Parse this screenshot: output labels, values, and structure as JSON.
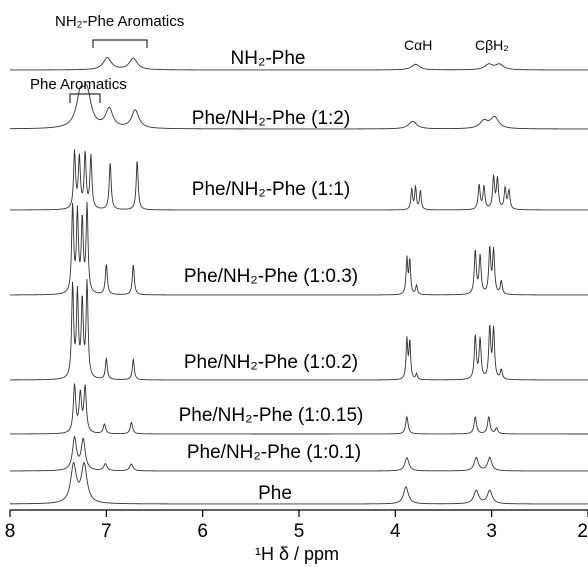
{
  "chart_data": {
    "type": "line",
    "xlabel": "¹H δ / ppm",
    "x_reversed": true,
    "xlim": [
      8,
      2
    ],
    "xticks": [
      "8",
      "7",
      "6",
      "5",
      "4",
      "3",
      "2"
    ],
    "grid": false,
    "peak_annotations": {
      "nh2_aromatics": "NH₂-Phe Aromatics",
      "phe_aromatics": "Phe Aromatics",
      "ca_h": "CαH",
      "cb_h2": "CβH₂"
    },
    "series": [
      {
        "name": "NH₂-Phe",
        "peaks": [
          {
            "ppm": 6.99,
            "height": 0.32,
            "width": 0.05
          },
          {
            "ppm": 6.72,
            "height": 0.3,
            "width": 0.05
          },
          {
            "ppm": 3.79,
            "height": 0.15,
            "width": 0.05
          },
          {
            "ppm": 3.03,
            "height": 0.14,
            "width": 0.05
          },
          {
            "ppm": 2.92,
            "height": 0.14,
            "width": 0.05
          }
        ]
      },
      {
        "name": "Phe/NH₂-Phe (1:2)",
        "peaks": [
          {
            "ppm": 7.27,
            "height": 0.8,
            "width": 0.05
          },
          {
            "ppm": 7.2,
            "height": 0.85,
            "width": 0.05
          },
          {
            "ppm": 6.97,
            "height": 0.5,
            "width": 0.045
          },
          {
            "ppm": 6.7,
            "height": 0.48,
            "width": 0.045
          },
          {
            "ppm": 3.82,
            "height": 0.2,
            "width": 0.05
          },
          {
            "ppm": 3.08,
            "height": 0.2,
            "width": 0.05
          },
          {
            "ppm": 2.97,
            "height": 0.3,
            "width": 0.05
          }
        ]
      },
      {
        "name": "Phe/NH₂-Phe (1:1)",
        "peaks": [
          {
            "ppm": 7.33,
            "height": 1.5,
            "width": 0.012
          },
          {
            "ppm": 7.28,
            "height": 1.35,
            "width": 0.012
          },
          {
            "ppm": 7.22,
            "height": 1.45,
            "width": 0.012
          },
          {
            "ppm": 7.16,
            "height": 1.4,
            "width": 0.012
          },
          {
            "ppm": 6.96,
            "height": 1.25,
            "width": 0.012
          },
          {
            "ppm": 6.68,
            "height": 1.3,
            "width": 0.012
          },
          {
            "ppm": 3.83,
            "height": 0.55,
            "width": 0.01
          },
          {
            "ppm": 3.79,
            "height": 0.6,
            "width": 0.01
          },
          {
            "ppm": 3.74,
            "height": 0.5,
            "width": 0.01
          },
          {
            "ppm": 3.13,
            "height": 0.65,
            "width": 0.012
          },
          {
            "ppm": 3.08,
            "height": 0.6,
            "width": 0.012
          },
          {
            "ppm": 2.98,
            "height": 0.85,
            "width": 0.012
          },
          {
            "ppm": 2.94,
            "height": 0.8,
            "width": 0.012
          },
          {
            "ppm": 2.86,
            "height": 0.55,
            "width": 0.012
          },
          {
            "ppm": 2.82,
            "height": 0.5,
            "width": 0.012
          }
        ]
      },
      {
        "name": "Phe/NH₂-Phe (1:0.3)",
        "peaks": [
          {
            "ppm": 7.35,
            "height": 2.3,
            "width": 0.012
          },
          {
            "ppm": 7.3,
            "height": 2.1,
            "width": 0.012
          },
          {
            "ppm": 7.25,
            "height": 1.9,
            "width": 0.012
          },
          {
            "ppm": 7.2,
            "height": 2.3,
            "width": 0.012
          },
          {
            "ppm": 7.0,
            "height": 0.8,
            "width": 0.012
          },
          {
            "ppm": 6.72,
            "height": 0.8,
            "width": 0.012
          },
          {
            "ppm": 3.88,
            "height": 0.95,
            "width": 0.01
          },
          {
            "ppm": 3.85,
            "height": 0.9,
            "width": 0.01
          },
          {
            "ppm": 3.78,
            "height": 0.25,
            "width": 0.01
          },
          {
            "ppm": 3.17,
            "height": 1.15,
            "width": 0.012
          },
          {
            "ppm": 3.12,
            "height": 1.0,
            "width": 0.012
          },
          {
            "ppm": 3.02,
            "height": 1.2,
            "width": 0.012
          },
          {
            "ppm": 2.98,
            "height": 1.15,
            "width": 0.012
          },
          {
            "ppm": 2.9,
            "height": 0.35,
            "width": 0.012
          }
        ]
      },
      {
        "name": "Phe/NH₂-Phe (1:0.2)",
        "peaks": [
          {
            "ppm": 7.35,
            "height": 2.45,
            "width": 0.012
          },
          {
            "ppm": 7.3,
            "height": 2.2,
            "width": 0.012
          },
          {
            "ppm": 7.25,
            "height": 2.0,
            "width": 0.012
          },
          {
            "ppm": 7.2,
            "height": 2.5,
            "width": 0.012
          },
          {
            "ppm": 7.0,
            "height": 0.55,
            "width": 0.012
          },
          {
            "ppm": 6.72,
            "height": 0.55,
            "width": 0.012
          },
          {
            "ppm": 3.88,
            "height": 1.05,
            "width": 0.01
          },
          {
            "ppm": 3.85,
            "height": 1.0,
            "width": 0.01
          },
          {
            "ppm": 3.78,
            "height": 0.15,
            "width": 0.01
          },
          {
            "ppm": 3.17,
            "height": 1.15,
            "width": 0.012
          },
          {
            "ppm": 3.12,
            "height": 1.05,
            "width": 0.012
          },
          {
            "ppm": 3.02,
            "height": 1.35,
            "width": 0.012
          },
          {
            "ppm": 2.98,
            "height": 1.3,
            "width": 0.012
          },
          {
            "ppm": 2.9,
            "height": 0.25,
            "width": 0.012
          }
        ]
      },
      {
        "name": "Phe/NH₂-Phe (1:0.15)",
        "peaks": [
          {
            "ppm": 7.33,
            "height": 1.25,
            "width": 0.015
          },
          {
            "ppm": 7.27,
            "height": 1.0,
            "width": 0.015
          },
          {
            "ppm": 7.22,
            "height": 1.2,
            "width": 0.015
          },
          {
            "ppm": 7.02,
            "height": 0.25,
            "width": 0.015
          },
          {
            "ppm": 6.74,
            "height": 0.3,
            "width": 0.015
          },
          {
            "ppm": 3.88,
            "height": 0.45,
            "width": 0.015
          },
          {
            "ppm": 3.17,
            "height": 0.45,
            "width": 0.015
          },
          {
            "ppm": 3.03,
            "height": 0.45,
            "width": 0.015
          },
          {
            "ppm": 2.95,
            "height": 0.15,
            "width": 0.015
          }
        ]
      },
      {
        "name": "Phe/NH₂-Phe (1:0.1)",
        "peaks": [
          {
            "ppm": 7.33,
            "height": 0.85,
            "width": 0.025
          },
          {
            "ppm": 7.24,
            "height": 0.8,
            "width": 0.025
          },
          {
            "ppm": 7.01,
            "height": 0.18,
            "width": 0.02
          },
          {
            "ppm": 6.74,
            "height": 0.18,
            "width": 0.02
          },
          {
            "ppm": 3.88,
            "height": 0.35,
            "width": 0.025
          },
          {
            "ppm": 3.16,
            "height": 0.35,
            "width": 0.025
          },
          {
            "ppm": 3.02,
            "height": 0.35,
            "width": 0.025
          }
        ]
      },
      {
        "name": "Phe",
        "peaks": [
          {
            "ppm": 7.34,
            "height": 1.0,
            "width": 0.035
          },
          {
            "ppm": 7.23,
            "height": 1.0,
            "width": 0.035
          },
          {
            "ppm": 3.89,
            "height": 0.45,
            "width": 0.03
          },
          {
            "ppm": 3.16,
            "height": 0.35,
            "width": 0.03
          },
          {
            "ppm": 3.02,
            "height": 0.35,
            "width": 0.03
          }
        ]
      }
    ]
  }
}
